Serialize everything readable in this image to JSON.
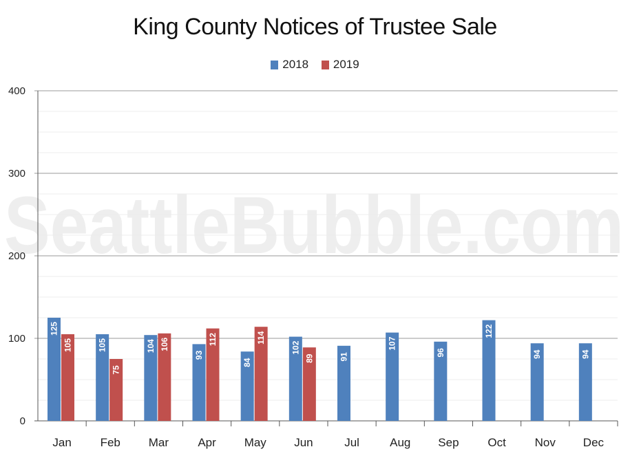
{
  "chart_data": {
    "type": "bar",
    "title": "King County Notices of Trustee Sale",
    "watermark": "SeattleBubble.com",
    "categories": [
      "Jan",
      "Feb",
      "Mar",
      "Apr",
      "May",
      "Jun",
      "Jul",
      "Aug",
      "Sep",
      "Oct",
      "Nov",
      "Dec"
    ],
    "series": [
      {
        "name": "2018",
        "color": "#4f81bd",
        "values": [
          125,
          105,
          104,
          93,
          84,
          102,
          91,
          107,
          96,
          122,
          94,
          94
        ]
      },
      {
        "name": "2019",
        "color": "#c0504d",
        "values": [
          105,
          75,
          106,
          112,
          114,
          89,
          null,
          null,
          null,
          null,
          null,
          null
        ]
      }
    ],
    "ylim": [
      0,
      400
    ],
    "yticks": [
      0,
      100,
      200,
      300,
      400
    ],
    "grid": true,
    "legend": "top-center",
    "xlabel": "",
    "ylabel": ""
  }
}
